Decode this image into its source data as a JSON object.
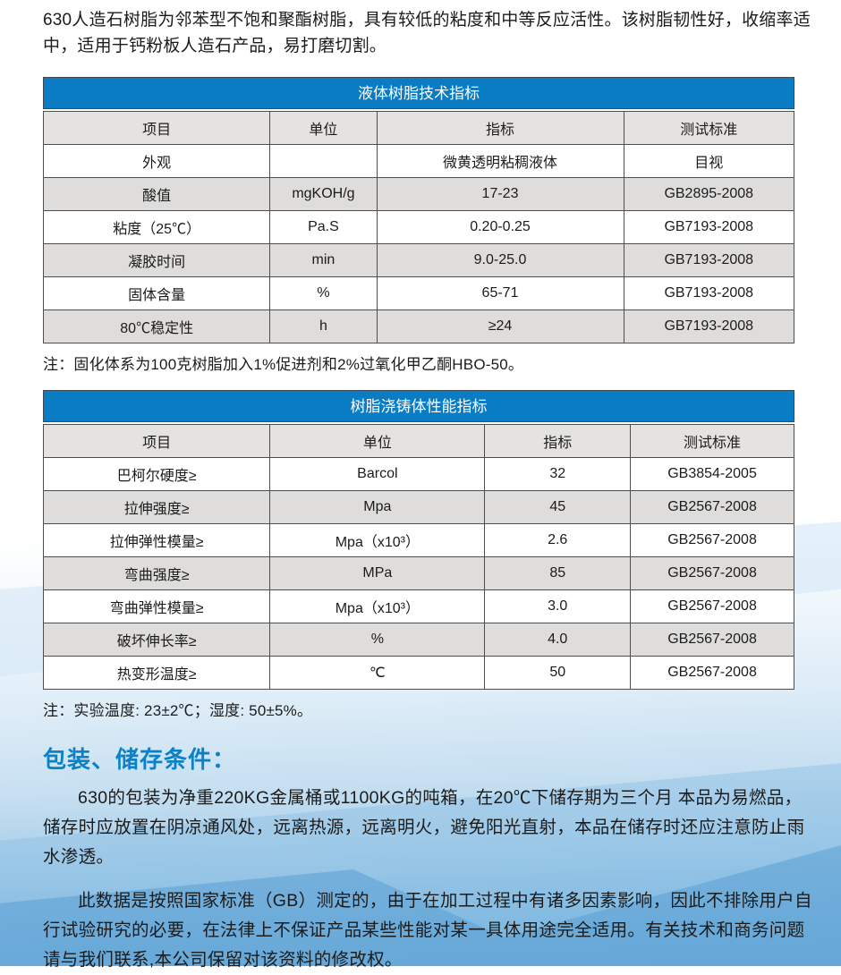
{
  "intro": "630人造石树脂为邻苯型不饱和聚酯树脂，具有较低的粘度和中等反应活性。该树脂韧性好，收缩率适中，适用于钙粉板人造石产品，易打磨切割。",
  "table1": {
    "title": "液体树脂技术指标",
    "headers": [
      "项目",
      "单位",
      "指标",
      "测试标准"
    ],
    "rows": [
      [
        "外观",
        "",
        "微黄透明粘稠液体",
        "目视"
      ],
      [
        "酸值",
        "mgKOH/g",
        "17-23",
        "GB2895-2008"
      ],
      [
        "粘度（25℃）",
        "Pa.S",
        "0.20-0.25",
        "GB7193-2008"
      ],
      [
        "凝胶时间",
        "min",
        "9.0-25.0",
        "GB7193-2008"
      ],
      [
        "固体含量",
        "%",
        "65-71",
        "GB7193-2008"
      ],
      [
        "80℃稳定性",
        "h",
        "≥24",
        "GB7193-2008"
      ]
    ],
    "note": "注：固化体系为100克树脂加入1%促进剂和2%过氧化甲乙酮HBO-50。"
  },
  "table2": {
    "title": "树脂浇铸体性能指标",
    "headers": [
      "项目",
      "单位",
      "指标",
      "测试标准"
    ],
    "rows": [
      [
        "巴柯尔硬度≥",
        "Barcol",
        "32",
        "GB3854-2005"
      ],
      [
        "拉伸强度≥",
        "Mpa",
        "45",
        "GB2567-2008"
      ],
      [
        "拉伸弹性模量≥",
        "Mpa（x10³）",
        "2.6",
        "GB2567-2008"
      ],
      [
        "弯曲强度≥",
        "MPa",
        "85",
        "GB2567-2008"
      ],
      [
        "弯曲弹性模量≥",
        "Mpa（x10³）",
        "3.0",
        "GB2567-2008"
      ],
      [
        "破坏伸长率≥",
        "%",
        "4.0",
        "GB2567-2008"
      ],
      [
        "热变形温度≥",
        "℃",
        "50",
        "GB2567-2008"
      ]
    ],
    "note": "注：实验温度: 23±2℃；湿度: 50±5%。"
  },
  "storage": {
    "heading": "包装、储存条件：",
    "para1": "630的包装为净重220KG金属桶或1100KG的吨箱，在20℃下储存期为三个月 本品为易燃品，储存时应放置在阴凉通风处，远离热源，远离明火，避免阳光直射，本品在储存时还应注意防止雨水渗透。",
    "para2": "此数据是按照国家标准（GB）测定的，由于在加工过程中有诸多因素影响，因此不排除用户自行试验研究的必要，在法律上不保证产品某些性能对某一具体用途完全适用。有关技术和商务问题请与我们联系,本公司保留对该资料的修改权。"
  },
  "colors": {
    "table_header_blue": "#0a7cc4",
    "section_heading_blue": "#0b82c8",
    "row_alt_gray": "#dedddb",
    "bottom_gradient_blue": "#5ea8d8"
  }
}
